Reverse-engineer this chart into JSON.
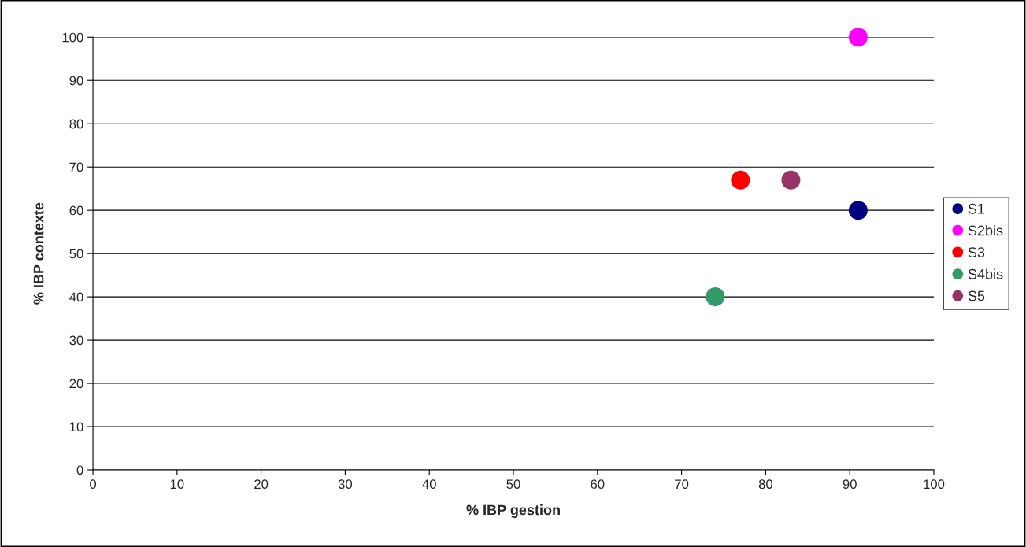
{
  "chart_data": {
    "type": "scatter",
    "xlabel": "% IBP gestion",
    "ylabel": "% IBP contexte",
    "series": [
      {
        "name": "S1",
        "color": "#000080",
        "x": [
          91
        ],
        "values": [
          60
        ]
      },
      {
        "name": "S2bis",
        "color": "#ff00ff",
        "x": [
          91
        ],
        "values": [
          100
        ]
      },
      {
        "name": "S3",
        "color": "#ff0000",
        "x": [
          77
        ],
        "values": [
          67
        ]
      },
      {
        "name": "S4bis",
        "color": "#339966",
        "x": [
          74
        ],
        "values": [
          40
        ]
      },
      {
        "name": "S5",
        "color": "#993366",
        "x": [
          83
        ],
        "values": [
          67
        ]
      }
    ],
    "xlim": [
      0,
      100
    ],
    "xticks": [
      0,
      10,
      20,
      30,
      40,
      50,
      60,
      70,
      80,
      90,
      100
    ],
    "ylim": [
      0,
      100
    ],
    "yticks": [
      0,
      10,
      20,
      30,
      40,
      50,
      60,
      70,
      80,
      90,
      100
    ],
    "grid": "y",
    "legend": "right",
    "marker": "circle"
  }
}
